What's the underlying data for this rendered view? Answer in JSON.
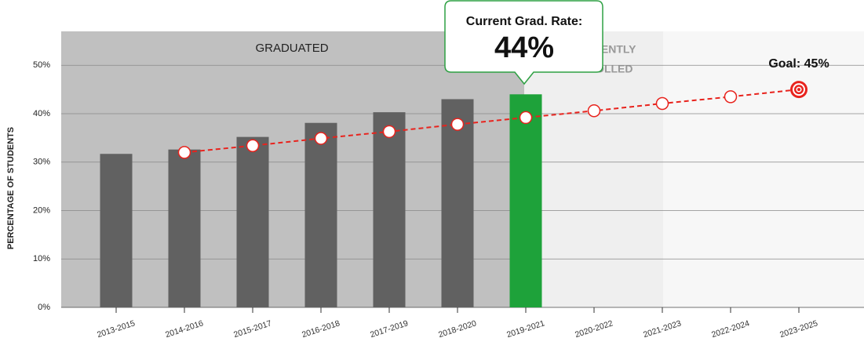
{
  "chart_data": {
    "type": "bar",
    "y_label": "PERCENTAGE OF STUDENTS",
    "categories": [
      "2013-2015",
      "2014-2016",
      "2015-2017",
      "2016-2018",
      "2017-2019",
      "2018-2020",
      "2019-2021",
      "2020-2022",
      "2021-2023",
      "2022-2024",
      "2023-2025"
    ],
    "series": [
      {
        "type": "bar",
        "color": "#616161",
        "highlight_color": "#1ea23a",
        "values": [
          31.7,
          32.6,
          35.2,
          38.1,
          40.3,
          43.0,
          44,
          null,
          null,
          null,
          null
        ]
      },
      {
        "type": "line",
        "color": "#e8231d",
        "values": [
          null,
          32.0,
          33.4,
          34.9,
          36.3,
          37.8,
          39.2,
          40.6,
          42.1,
          43.5,
          45
        ]
      }
    ],
    "region_labels": [
      "GRADUATED",
      "CURRENTLY",
      "ENROLLED"
    ],
    "callout": {
      "title": "Current Grad. Rate:",
      "value_label": "44%"
    },
    "goal_label": "Goal: 45%",
    "ylim": [
      0,
      57
    ],
    "yticks": [
      {
        "value": 0,
        "label": "0%"
      },
      {
        "value": 10,
        "label": "10%"
      },
      {
        "value": 20,
        "label": "20%"
      },
      {
        "value": 30,
        "label": "30%"
      },
      {
        "value": 40,
        "label": "40%"
      },
      {
        "value": 50,
        "label": "50%"
      }
    ],
    "grid": true
  }
}
